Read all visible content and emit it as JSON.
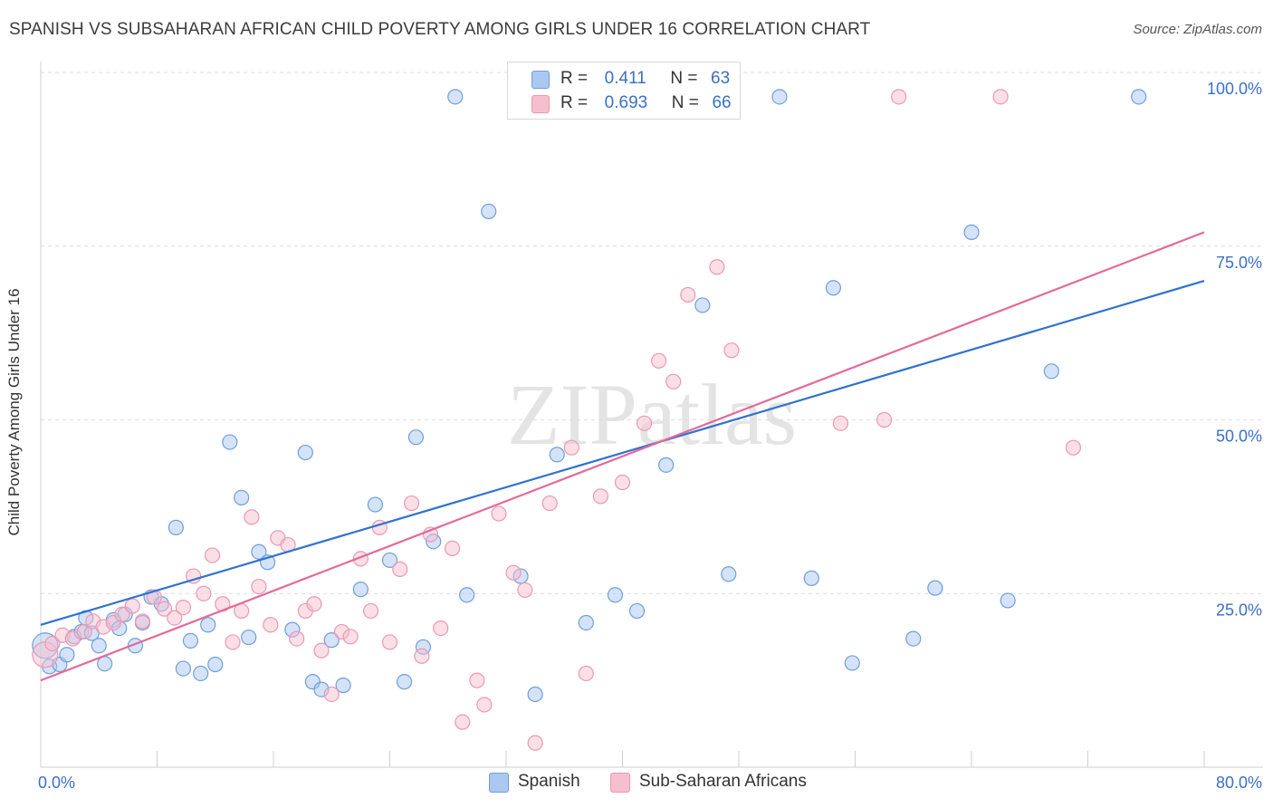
{
  "title": "SPANISH VS SUBSAHARAN AFRICAN CHILD POVERTY AMONG GIRLS UNDER 16 CORRELATION CHART",
  "source": "Source: ZipAtlas.com",
  "watermark": "ZIPatlas",
  "colors": {
    "spanish_fill": "#aac8f0",
    "spanish_stroke": "#6f9fdc",
    "spanish_line": "#2f72d0",
    "african_fill": "#f6bfd0",
    "african_stroke": "#eb98b3",
    "african_line": "#e4699a",
    "axis_text_blue": "#3b6fc6"
  },
  "legend": {
    "r_label": "R =",
    "n_label": "N =",
    "spanish": {
      "r": "0.411",
      "n": "63"
    },
    "african": {
      "r": "0.693",
      "n": "66"
    }
  },
  "chart_data": {
    "type": "scatter",
    "title": "SPANISH VS SUBSAHARAN AFRICAN CHILD POVERTY AMONG GIRLS UNDER 16 CORRELATION CHART",
    "xlabel": "",
    "ylabel": "Child Poverty Among Girls Under 16",
    "xlim": [
      0,
      80
    ],
    "ylim": [
      0,
      100
    ],
    "x_tick_labels": [
      "0.0%",
      "80.0%"
    ],
    "y_tick_labels": [
      "25.0%",
      "50.0%",
      "75.0%",
      "100.0%"
    ],
    "y_ticks": [
      25,
      50,
      75,
      100
    ],
    "grid": true,
    "legend_placement": "bottom",
    "series": [
      {
        "name": "Spanish",
        "r": 0.411,
        "n": 63,
        "trend": {
          "x": [
            0,
            80
          ],
          "y": [
            20.5,
            70.0
          ]
        },
        "points": [
          [
            0.3,
            17.5
          ],
          [
            0.6,
            14.5
          ],
          [
            1.3,
            14.8
          ],
          [
            1.8,
            16.2
          ],
          [
            2.3,
            18.8
          ],
          [
            2.8,
            19.5
          ],
          [
            3.1,
            21.5
          ],
          [
            3.5,
            19.3
          ],
          [
            4.0,
            17.5
          ],
          [
            4.4,
            14.9
          ],
          [
            5.0,
            21.2
          ],
          [
            5.4,
            20.0
          ],
          [
            5.8,
            22.0
          ],
          [
            6.5,
            17.5
          ],
          [
            7.0,
            20.8
          ],
          [
            7.6,
            24.5
          ],
          [
            8.3,
            23.5
          ],
          [
            9.3,
            34.5
          ],
          [
            9.8,
            14.2
          ],
          [
            10.3,
            18.2
          ],
          [
            11.0,
            13.5
          ],
          [
            11.5,
            20.5
          ],
          [
            12.0,
            14.8
          ],
          [
            13.0,
            46.8
          ],
          [
            13.8,
            38.8
          ],
          [
            14.3,
            18.7
          ],
          [
            15.0,
            31.0
          ],
          [
            15.6,
            29.5
          ],
          [
            17.3,
            19.8
          ],
          [
            18.2,
            45.3
          ],
          [
            18.7,
            12.3
          ],
          [
            19.3,
            11.2
          ],
          [
            20.0,
            18.3
          ],
          [
            20.8,
            11.8
          ],
          [
            22.0,
            25.6
          ],
          [
            23.0,
            37.8
          ],
          [
            24.0,
            29.8
          ],
          [
            25.0,
            12.3
          ],
          [
            25.8,
            47.5
          ],
          [
            26.3,
            17.3
          ],
          [
            27.0,
            32.5
          ],
          [
            28.5,
            96.5
          ],
          [
            29.3,
            24.8
          ],
          [
            30.8,
            80.0
          ],
          [
            33.0,
            27.5
          ],
          [
            34.0,
            10.5
          ],
          [
            35.5,
            45.0
          ],
          [
            37.5,
            20.8
          ],
          [
            39.5,
            24.8
          ],
          [
            41.0,
            22.5
          ],
          [
            43.0,
            43.5
          ],
          [
            45.5,
            66.5
          ],
          [
            47.3,
            27.8
          ],
          [
            50.8,
            96.5
          ],
          [
            53.0,
            27.2
          ],
          [
            54.5,
            69.0
          ],
          [
            55.8,
            15.0
          ],
          [
            60.0,
            18.5
          ],
          [
            61.5,
            25.8
          ],
          [
            64.0,
            77.0
          ],
          [
            66.5,
            24.0
          ],
          [
            69.5,
            57.0
          ],
          [
            75.5,
            96.5
          ]
        ]
      },
      {
        "name": "Sub-Saharan Africans",
        "r": 0.693,
        "n": 66,
        "trend": {
          "x": [
            0,
            80
          ],
          "y": [
            12.5,
            77.0
          ]
        },
        "points": [
          [
            0.3,
            16.2
          ],
          [
            0.8,
            17.8
          ],
          [
            1.5,
            19.0
          ],
          [
            2.2,
            18.5
          ],
          [
            3.0,
            19.5
          ],
          [
            3.6,
            21.0
          ],
          [
            4.3,
            20.2
          ],
          [
            5.0,
            20.8
          ],
          [
            5.6,
            22.0
          ],
          [
            6.3,
            23.2
          ],
          [
            7.0,
            21.0
          ],
          [
            7.8,
            24.5
          ],
          [
            8.5,
            22.8
          ],
          [
            9.2,
            21.5
          ],
          [
            9.8,
            23.0
          ],
          [
            10.5,
            27.5
          ],
          [
            11.2,
            25.0
          ],
          [
            11.8,
            30.5
          ],
          [
            12.5,
            23.5
          ],
          [
            13.2,
            18.0
          ],
          [
            13.8,
            22.5
          ],
          [
            14.5,
            36.0
          ],
          [
            15.0,
            26.0
          ],
          [
            15.8,
            20.5
          ],
          [
            16.3,
            33.0
          ],
          [
            17.0,
            32.0
          ],
          [
            17.6,
            18.5
          ],
          [
            18.2,
            22.5
          ],
          [
            18.8,
            23.5
          ],
          [
            19.3,
            16.8
          ],
          [
            20.0,
            10.5
          ],
          [
            20.7,
            19.5
          ],
          [
            21.3,
            18.8
          ],
          [
            22.0,
            30.0
          ],
          [
            22.7,
            22.5
          ],
          [
            23.3,
            34.5
          ],
          [
            24.0,
            18.0
          ],
          [
            24.7,
            28.5
          ],
          [
            25.5,
            38.0
          ],
          [
            26.2,
            16.0
          ],
          [
            26.8,
            33.5
          ],
          [
            27.5,
            20.0
          ],
          [
            28.3,
            31.5
          ],
          [
            29.0,
            6.5
          ],
          [
            30.0,
            12.5
          ],
          [
            30.5,
            9.0
          ],
          [
            31.5,
            36.5
          ],
          [
            32.5,
            28.0
          ],
          [
            33.3,
            25.5
          ],
          [
            34.0,
            3.5
          ],
          [
            35.0,
            38.0
          ],
          [
            36.5,
            46.0
          ],
          [
            37.5,
            13.5
          ],
          [
            38.5,
            39.0
          ],
          [
            40.0,
            41.0
          ],
          [
            41.5,
            49.5
          ],
          [
            42.5,
            58.5
          ],
          [
            43.5,
            55.5
          ],
          [
            44.5,
            68.0
          ],
          [
            46.5,
            72.0
          ],
          [
            47.5,
            60.0
          ],
          [
            55.0,
            49.5
          ],
          [
            58.0,
            50.0
          ],
          [
            59.0,
            96.5
          ],
          [
            66.0,
            96.5
          ],
          [
            71.0,
            46.0
          ]
        ]
      }
    ]
  }
}
